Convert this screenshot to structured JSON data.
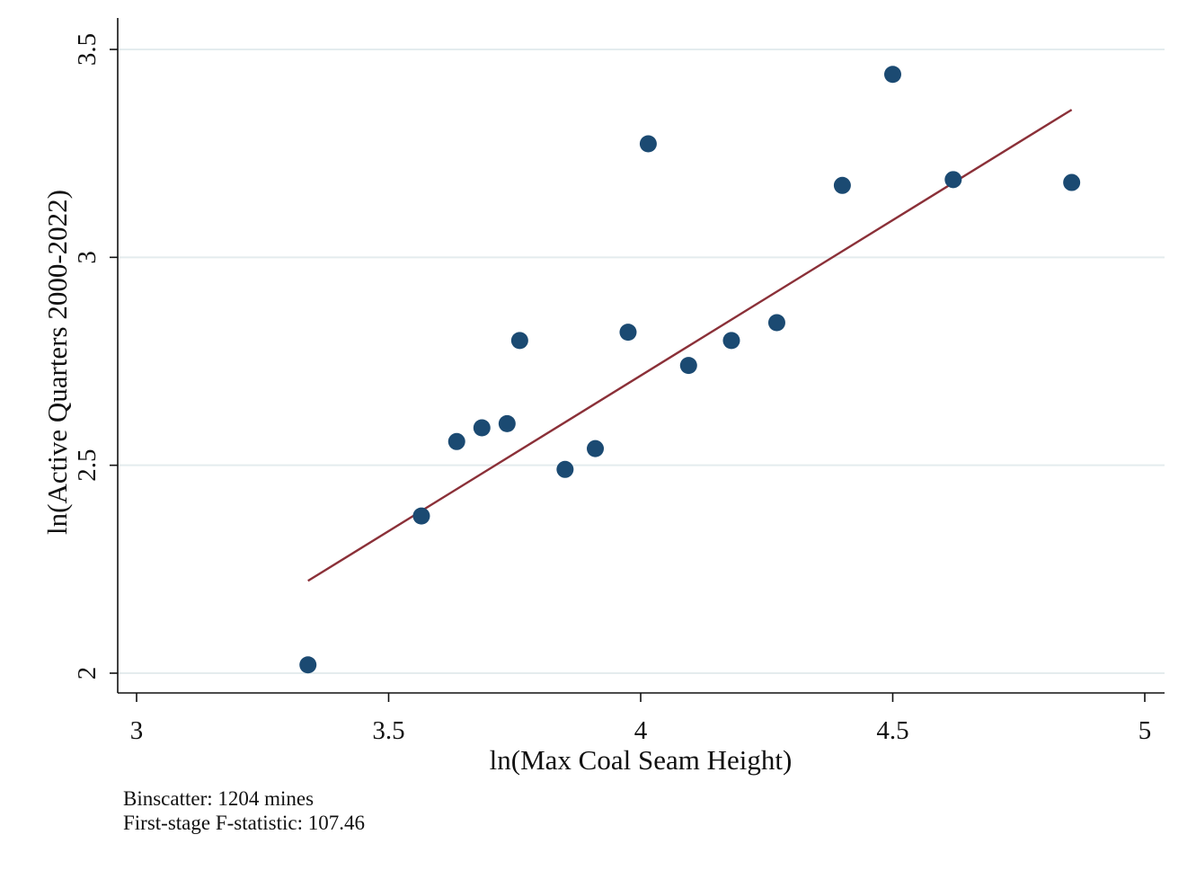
{
  "chart_data": {
    "type": "scatter",
    "title": "",
    "xlabel": "ln(Max Coal Seam Height)",
    "ylabel": "ln(Active Quarters 2000-2022)",
    "xlim": [
      3,
      5
    ],
    "ylim": [
      2,
      3.5
    ],
    "xticks": [
      "3",
      "3.5",
      "4",
      "4.5",
      "5"
    ],
    "yticks": [
      "2",
      "2.5",
      "3",
      "3.5"
    ],
    "grid": true,
    "legend": "none",
    "colors": {
      "points": "#1b4a72",
      "fit_line": "#8b3038",
      "grid": "#e4ecee",
      "axis": "#111111"
    },
    "points": [
      {
        "x": 3.34,
        "y": 2.02
      },
      {
        "x": 3.565,
        "y": 2.378
      },
      {
        "x": 3.635,
        "y": 2.557
      },
      {
        "x": 3.685,
        "y": 2.59
      },
      {
        "x": 3.735,
        "y": 2.6
      },
      {
        "x": 3.76,
        "y": 2.8
      },
      {
        "x": 3.85,
        "y": 2.49
      },
      {
        "x": 3.91,
        "y": 2.54
      },
      {
        "x": 3.975,
        "y": 2.82
      },
      {
        "x": 4.015,
        "y": 3.273
      },
      {
        "x": 4.095,
        "y": 2.74
      },
      {
        "x": 4.18,
        "y": 2.8
      },
      {
        "x": 4.27,
        "y": 2.843
      },
      {
        "x": 4.4,
        "y": 3.173
      },
      {
        "x": 4.5,
        "y": 3.44
      },
      {
        "x": 4.62,
        "y": 3.187
      },
      {
        "x": 4.855,
        "y": 3.18
      }
    ],
    "fit_line": {
      "x": [
        3.34,
        4.855
      ],
      "y": [
        2.222,
        3.355
      ]
    },
    "annotations": [
      "Binscatter: 1204 mines",
      "First-stage F-statistic: 107.46"
    ]
  }
}
